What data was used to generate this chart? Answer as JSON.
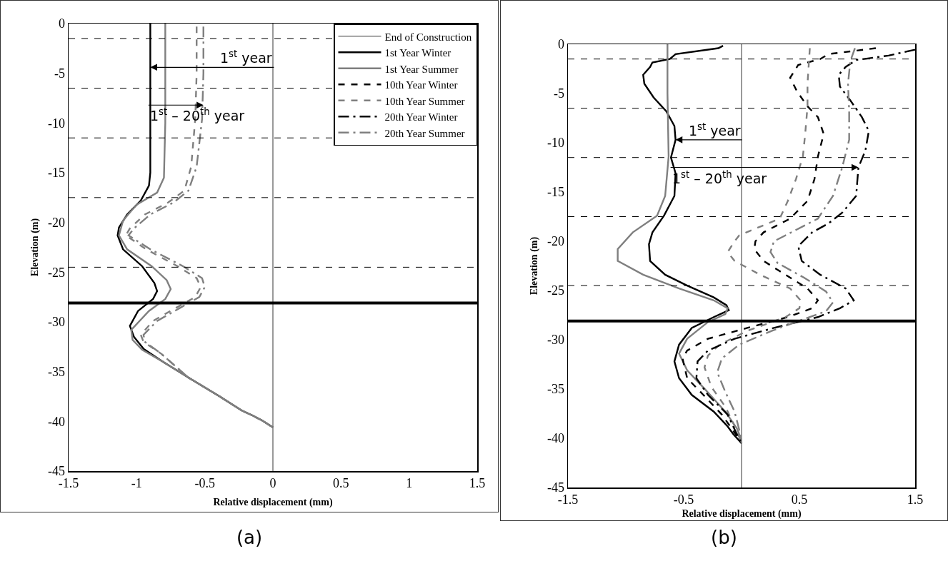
{
  "chart_data": [
    {
      "type": "line",
      "orientation": "horizontal",
      "xlabel": "Relative displacement (mm)",
      "ylabel": "Elevation (m)",
      "xlim": [
        -1.5,
        1.5
      ],
      "xticks": [
        -1.5,
        -1,
        -0.5,
        0,
        0.5,
        1,
        1.5
      ],
      "ylim": [
        -45,
        0
      ],
      "yticks": [
        -45,
        -40,
        -35,
        -30,
        -25,
        -20,
        -15,
        -10,
        -5,
        0
      ],
      "grid": false,
      "legend": "top right",
      "marker": "none",
      "series": [
        {
          "name": "End of Construction",
          "color": "#000000",
          "line_style": "solid",
          "x": [
            0,
            -45
          ],
          "values": [
            0,
            0
          ]
        },
        {
          "name": "1st Year Winter",
          "color": "#000000",
          "line_style": "solid",
          "x": [
            0,
            -8,
            -15,
            -16.3,
            -17.8,
            -19.2,
            -20.5,
            -21.3,
            -22.7,
            -24.4,
            -26.1,
            -26.9,
            -27.7,
            -28.9,
            -30.4,
            -31.5,
            -32.7,
            -33.9,
            -35.6,
            -37.5,
            -38.9,
            -39.4,
            -39.9,
            -40.6
          ],
          "values": [
            -0.9,
            -0.9,
            -0.9,
            -0.91,
            -0.97,
            -1.07,
            -1.13,
            -1.14,
            -1.1,
            -0.96,
            -0.87,
            -0.85,
            -0.88,
            -0.99,
            -1.05,
            -1.02,
            -0.95,
            -0.82,
            -0.62,
            -0.39,
            -0.23,
            -0.15,
            -0.08,
            0
          ]
        },
        {
          "name": "1st Year Summer",
          "color": "#7f7f7f",
          "line_style": "solid",
          "x": [
            0,
            -10,
            -15.5,
            -17,
            -18.2,
            -19.8,
            -21.3,
            -22.7,
            -24.4,
            -25.8,
            -26.7,
            -27.7,
            -28.9,
            -30.8,
            -31.8,
            -32.8,
            -33.9,
            -35.6,
            -37.5,
            -38.9,
            -39.4,
            -39.9,
            -40.6
          ],
          "values": [
            -0.79,
            -0.79,
            -0.8,
            -0.85,
            -1.0,
            -1.1,
            -1.13,
            -1.07,
            -0.89,
            -0.78,
            -0.75,
            -0.79,
            -0.91,
            -1.04,
            -1.03,
            -0.96,
            -0.82,
            -0.62,
            -0.39,
            -0.23,
            -0.15,
            -0.08,
            0
          ]
        },
        {
          "name": "10th Year Winter",
          "color": "#000000",
          "line_style": "dashed"
        },
        {
          "name": "10th Year Summer",
          "color": "#7f7f7f",
          "line_style": "dashed",
          "x": [
            -0.3,
            -5,
            -9.6,
            -14.4,
            -16.8,
            -18,
            -19.2,
            -20.6,
            -21.3,
            -22.7,
            -24.4,
            -25.6,
            -26.5,
            -27.5,
            -28.5,
            -29.9,
            -31.3,
            -32,
            -33.2,
            -35.6,
            -37.5,
            -38.9,
            -39.9,
            -40.6
          ],
          "values": [
            -0.56,
            -0.56,
            -0.57,
            -0.6,
            -0.65,
            -0.77,
            -0.94,
            -1.05,
            -1.08,
            -0.93,
            -0.7,
            -0.56,
            -0.53,
            -0.57,
            -0.7,
            -0.88,
            -0.97,
            -0.95,
            -0.82,
            -0.62,
            -0.39,
            -0.23,
            -0.08,
            0
          ]
        },
        {
          "name": "20th Year Winter",
          "color": "#000000",
          "line_style": "dashdot"
        },
        {
          "name": "20th Year Summer",
          "color": "#7f7f7f",
          "line_style": "dashdot",
          "x": [
            -0.3,
            -5,
            -9.6,
            -14.4,
            -16.8,
            -18,
            -19.2,
            -20.6,
            -21.3,
            -22.7,
            -24.4,
            -25.6,
            -26.5,
            -27.5,
            -28.5,
            -29.9,
            -31.3,
            -32,
            -33.2,
            -35.6,
            -37.5,
            -38.9,
            -39.9,
            -40.6
          ],
          "values": [
            -0.51,
            -0.51,
            -0.52,
            -0.56,
            -0.62,
            -0.73,
            -0.9,
            -1.02,
            -1.06,
            -0.9,
            -0.66,
            -0.52,
            -0.5,
            -0.54,
            -0.67,
            -0.85,
            -0.95,
            -0.94,
            -0.82,
            -0.62,
            -0.39,
            -0.23,
            -0.08,
            0
          ]
        }
      ],
      "ref_lines": [
        {
          "axis": "y",
          "value": -1.5,
          "color": "#000000",
          "line_style": "dashed"
        },
        {
          "axis": "y",
          "value": -6.5,
          "color": "#000000",
          "line_style": "dashed"
        },
        {
          "axis": "y",
          "value": -11.5,
          "color": "#000000",
          "line_style": "dashed"
        },
        {
          "axis": "y",
          "value": -17.5,
          "color": "#000000",
          "line_style": "dashed"
        },
        {
          "axis": "y",
          "value": -24.5,
          "color": "#000000",
          "line_style": "dashed"
        },
        {
          "axis": "y",
          "value": -28.1,
          "color": "#000000",
          "line_style": "solid"
        }
      ],
      "annotations": [
        {
          "text": "1$^{st}$ year",
          "x": -0.9,
          "y": -4.4
        },
        {
          "text": "1$^{st}$ – 20$^{th}$ year",
          "x": -0.51,
          "y": -8.2
        },
        "(a)"
      ]
    },
    {
      "type": "line",
      "orientation": "horizontal",
      "xlabel": "Relative displacement (mm)",
      "ylabel": "Elevation (m)",
      "xlim": [
        -1.5,
        1.5
      ],
      "xticks": [
        -1.5,
        -0.5,
        0.5,
        1.5
      ],
      "ylim": [
        -45,
        0
      ],
      "yticks": [
        -45,
        -40,
        -35,
        -30,
        -25,
        -20,
        -15,
        -10,
        -5,
        0
      ],
      "grid": false,
      "legend": false,
      "marker": "none",
      "series": [
        {
          "color": "#000000",
          "line_style": "solid",
          "x": [
            0,
            -45
          ],
          "values": [
            0,
            0
          ]
        },
        {
          "color": "#000000",
          "line_style": "solid",
          "x": [
            -0.15,
            -0.4,
            -1.0,
            -1.5,
            -1.85,
            -2.3,
            -3.1,
            -4.0,
            -5.4,
            -6.8,
            -8.3,
            -9.7,
            -11.5,
            -13.1,
            -15.4,
            -17.4,
            -19.1,
            -20.3,
            -22.0,
            -23.4,
            -24.5,
            -25.7,
            -26.5,
            -27.0,
            -27.7,
            -28.8,
            -30.5,
            -32.2,
            -33.9,
            -35.6,
            -37.3,
            -38.8,
            -39.6,
            -40.5
          ],
          "values": [
            -0.16,
            -0.2,
            -0.57,
            -0.62,
            -0.77,
            -0.79,
            -0.85,
            -0.84,
            -0.76,
            -0.65,
            -0.58,
            -0.57,
            -0.61,
            -0.57,
            -0.58,
            -0.67,
            -0.77,
            -0.8,
            -0.79,
            -0.66,
            -0.47,
            -0.24,
            -0.13,
            -0.11,
            -0.24,
            -0.43,
            -0.54,
            -0.58,
            -0.54,
            -0.43,
            -0.24,
            -0.12,
            -0.07,
            0
          ]
        },
        {
          "color": "#7f7f7f",
          "line_style": "solid",
          "x": [
            0,
            -5,
            -11.4,
            -15.4,
            -17.4,
            -19.1,
            -20.8,
            -22.0,
            -23.4,
            -24.8,
            -26.0,
            -26.8,
            -27.4,
            -28.2,
            -29.9,
            -31.4,
            -33.1,
            -35.1,
            -37.3,
            -39.0,
            -40.2
          ],
          "values": [
            -0.64,
            -0.64,
            -0.63,
            -0.66,
            -0.73,
            -0.94,
            -1.07,
            -1.07,
            -0.85,
            -0.54,
            -0.24,
            -0.12,
            -0.14,
            -0.29,
            -0.47,
            -0.54,
            -0.47,
            -0.31,
            -0.14,
            -0.04,
            0
          ]
        },
        {
          "color": "#000000",
          "line_style": "dashed",
          "x": [
            -0.4,
            -1.0,
            -1.5,
            -2.1,
            -3.4,
            -4.8,
            -6.3,
            -7.4,
            -9.1,
            -11.4,
            -13.7,
            -15.9,
            -17.7,
            -19.1,
            -20.0,
            -20.8,
            -22.0,
            -23.4,
            -24.8,
            -26.0,
            -26.8,
            -27.7,
            -28.8,
            -29.9,
            -31.1,
            -31.9,
            -33.9,
            -35.6,
            -37.6,
            -39.6,
            -40.5
          ],
          "values": [
            1.16,
            0.75,
            0.68,
            0.49,
            0.42,
            0.48,
            0.57,
            0.66,
            0.71,
            0.66,
            0.63,
            0.57,
            0.42,
            0.19,
            0.12,
            0.11,
            0.19,
            0.38,
            0.57,
            0.66,
            0.61,
            0.4,
            0.05,
            -0.29,
            -0.47,
            -0.51,
            -0.47,
            -0.33,
            -0.17,
            -0.05,
            0
          ]
        },
        {
          "color": "#7f7f7f",
          "line_style": "dashed",
          "x": [
            -0.4,
            -4.0,
            -6.3,
            -9.1,
            -11.4,
            -13.7,
            -15.9,
            -17.7,
            -19.4,
            -20.0,
            -21.1,
            -22.0,
            -23.4,
            -24.8,
            -26.0,
            -26.8,
            -27.7,
            -29.1,
            -30.5,
            -31.6,
            -32.8,
            -34.8,
            -36.8,
            -39.0,
            -40.5
          ],
          "values": [
            0.59,
            0.57,
            0.57,
            0.55,
            0.53,
            0.47,
            0.4,
            0.33,
            -0.02,
            -0.06,
            -0.12,
            -0.06,
            0.16,
            0.42,
            0.51,
            0.5,
            0.38,
            0.05,
            -0.19,
            -0.29,
            -0.32,
            -0.26,
            -0.14,
            -0.05,
            0
          ]
        },
        {
          "color": "#000000",
          "line_style": "dashdot",
          "x": [
            -0.55,
            -1.15,
            -1.6,
            -2.3,
            -3.1,
            -4.3,
            -5.7,
            -7.4,
            -8.8,
            -10.8,
            -12.5,
            -15.4,
            -17.1,
            -18.2,
            -19.1,
            -20.5,
            -22.0,
            -23.4,
            -24.8,
            -26.0,
            -26.8,
            -27.7,
            -28.8,
            -29.9,
            -31.1,
            -32.2,
            -33.9,
            -35.6,
            -37.6,
            -39.6,
            -40.5
          ],
          "values": [
            1.5,
            1.27,
            0.99,
            0.9,
            0.84,
            0.85,
            0.94,
            1.04,
            1.1,
            1.07,
            1.01,
            0.99,
            0.87,
            0.75,
            0.61,
            0.49,
            0.52,
            0.68,
            0.9,
            0.97,
            0.85,
            0.66,
            0.28,
            -0.06,
            -0.29,
            -0.38,
            -0.39,
            -0.29,
            -0.12,
            -0.04,
            0
          ]
        },
        {
          "color": "#7f7f7f",
          "line_style": "dashdot",
          "x": [
            -0.4,
            -1.7,
            -4.0,
            -6.8,
            -9.7,
            -12.5,
            -15.4,
            -17.7,
            -19.4,
            -20.0,
            -21.1,
            -22.2,
            -23.7,
            -25.1,
            -26.2,
            -27.1,
            -27.9,
            -29.1,
            -30.5,
            -31.9,
            -33.3,
            -35.3,
            -37.3,
            -39.6,
            -40.5
          ],
          "values": [
            0.98,
            0.94,
            0.92,
            0.93,
            0.93,
            0.87,
            0.79,
            0.66,
            0.38,
            0.28,
            0.25,
            0.31,
            0.54,
            0.73,
            0.79,
            0.73,
            0.54,
            0.26,
            -0.02,
            -0.17,
            -0.21,
            -0.14,
            -0.06,
            -0.01,
            0
          ]
        }
      ],
      "ref_lines": [
        {
          "axis": "y",
          "value": -1.5,
          "color": "#000000",
          "line_style": "dashed"
        },
        {
          "axis": "y",
          "value": -6.5,
          "color": "#000000",
          "line_style": "dashed"
        },
        {
          "axis": "y",
          "value": -11.5,
          "color": "#000000",
          "line_style": "dashed"
        },
        {
          "axis": "y",
          "value": -17.5,
          "color": "#000000",
          "line_style": "dashed"
        },
        {
          "axis": "y",
          "value": -24.5,
          "color": "#000000",
          "line_style": "dashed"
        },
        {
          "axis": "y",
          "value": -28.1,
          "color": "#000000",
          "line_style": "solid"
        }
      ],
      "annotations": [
        {
          "text": "1$^{st}$ year",
          "x": -0.57,
          "y": -9.7
        },
        {
          "text": "1$^{st}$ – 20$^{th}$ year",
          "x": 1.01,
          "y": -12.5
        },
        "(b)"
      ]
    }
  ]
}
